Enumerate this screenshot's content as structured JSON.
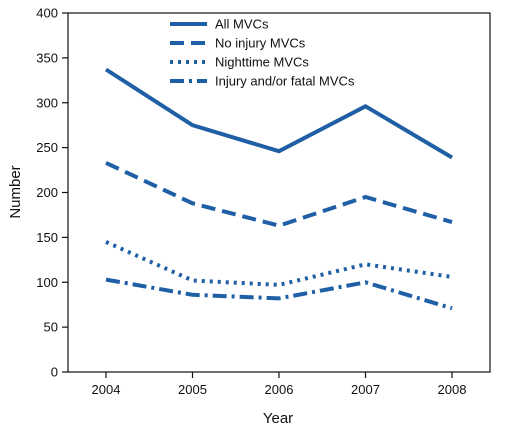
{
  "chart_data": {
    "type": "line",
    "title": "",
    "xlabel": "Year",
    "ylabel": "Number",
    "x": [
      "2004",
      "2005",
      "2006",
      "2007",
      "2008"
    ],
    "yticks": [
      "0",
      "50",
      "100",
      "150",
      "200",
      "250",
      "300",
      "350",
      "400"
    ],
    "ylim": [
      0,
      400
    ],
    "grid": false,
    "legend_position": "top-center",
    "color": "#1f5fa6",
    "series": [
      {
        "name": "All MVCs",
        "values": [
          337,
          275,
          246,
          296,
          239
        ],
        "dash": "solid"
      },
      {
        "name": "No injury MVCs",
        "values": [
          233,
          188,
          163,
          195,
          167
        ],
        "dash": "dashed"
      },
      {
        "name": "Nighttime MVCs",
        "values": [
          145,
          102,
          97,
          120,
          106
        ],
        "dash": "dotted"
      },
      {
        "name": "Injury and/or fatal MVCs",
        "values": [
          103,
          86,
          82,
          100,
          71
        ],
        "dash": "dash-dot"
      }
    ]
  }
}
